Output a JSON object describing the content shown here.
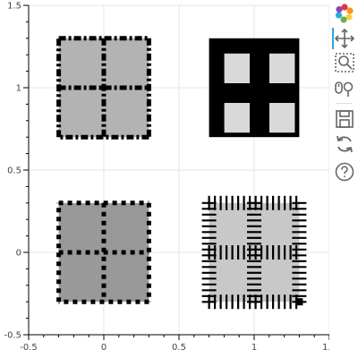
{
  "chart_data": {
    "type": "rect",
    "xlim": [
      -0.5,
      1.5
    ],
    "ylim": [
      -0.5,
      1.5
    ],
    "x_ticks": [
      "-0.5",
      "0",
      "0.5",
      "1",
      "1.5"
    ],
    "y_ticks": [
      "-0.5",
      "0",
      "0.5",
      "1",
      "1.5"
    ],
    "grid": true,
    "glyphs": [
      {
        "name": "top-left-square",
        "x": 0.0,
        "y": 1.0,
        "width": 0.6,
        "height": 0.6,
        "fill": "#b3b3b3",
        "fill_alpha": 1.0,
        "line_color": "#000000",
        "line_dash": "dashdot"
      },
      {
        "name": "top-right-square",
        "x": 1.0,
        "y": 1.0,
        "width": 0.6,
        "height": 0.6,
        "fill": "#ffffff",
        "fill_alpha": 0.85,
        "line_color": "#000000",
        "line_dash": "solid"
      },
      {
        "name": "bottom-left-square",
        "x": 0.0,
        "y": 0.0,
        "width": 0.6,
        "height": 0.6,
        "fill": "#999999",
        "fill_alpha": 1.0,
        "line_color": "#000000",
        "line_dash": "dotted"
      },
      {
        "name": "bottom-right-square",
        "x": 1.0,
        "y": 0.0,
        "width": 0.6,
        "height": 0.6,
        "fill": "#c8c8c8",
        "fill_alpha": 1.0,
        "line_color": "#000000",
        "line_dash": "hatched"
      }
    ]
  },
  "toolbar": {
    "logo_icon": "bokeh-logo-icon",
    "tools": [
      "pan-icon",
      "box-zoom-icon",
      "wheel-zoom-icon",
      "save-icon",
      "reset-icon",
      "help-icon"
    ]
  }
}
